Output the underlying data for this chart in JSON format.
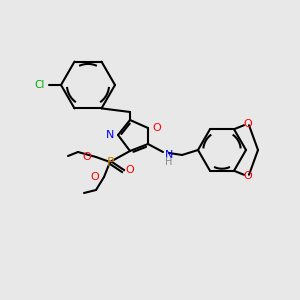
{
  "background_color": "#e8e8e8",
  "bond_color": "#000000",
  "colors": {
    "N": "#0000ff",
    "O": "#ff0000",
    "P": "#cc8800",
    "Cl": "#00aa00",
    "H": "#888888",
    "C": "#000000"
  },
  "figsize": [
    3.0,
    3.0
  ],
  "dpi": 100
}
